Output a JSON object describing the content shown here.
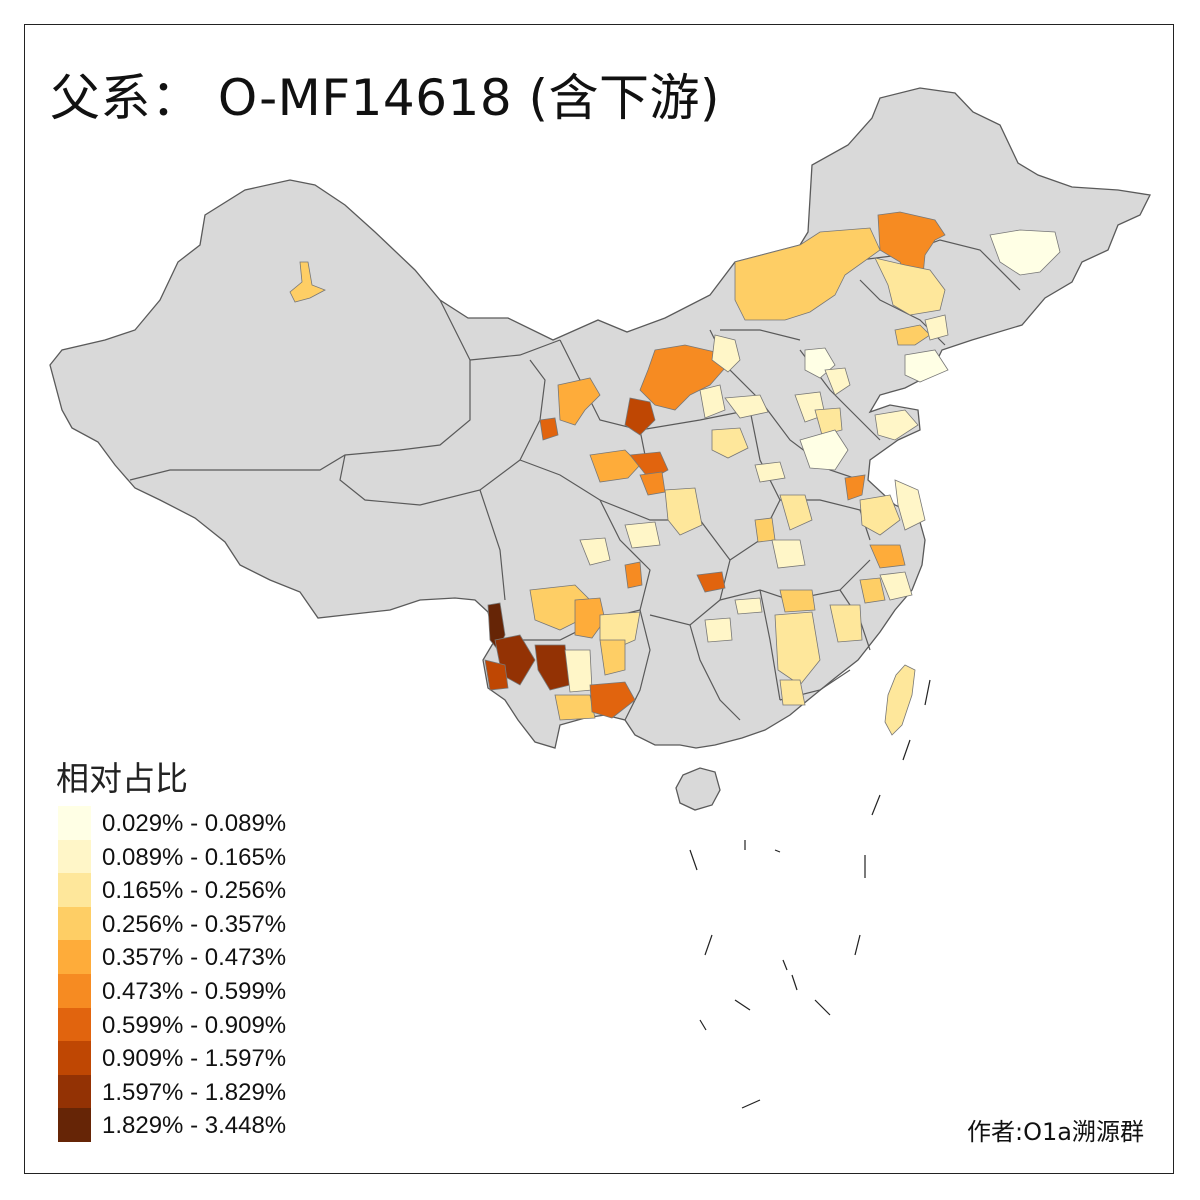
{
  "map": {
    "title": "父系： O-MF14618 (含下游)",
    "legend_title": "相对占比",
    "credit": "作者:O1a溯源群",
    "base_color": "#d9d9d9",
    "border_color": "#5a5a5a",
    "legend": [
      {
        "label": "0.029% - 0.089%",
        "color": "#ffffe5"
      },
      {
        "label": "0.089% - 0.165%",
        "color": "#fff6c8"
      },
      {
        "label": "0.165% - 0.256%",
        "color": "#fee79b"
      },
      {
        "label": "0.256% - 0.357%",
        "color": "#fece65"
      },
      {
        "label": "0.357% - 0.473%",
        "color": "#feac3a"
      },
      {
        "label": "0.473% - 0.599%",
        "color": "#f68b22"
      },
      {
        "label": "0.599% - 0.909%",
        "color": "#e1640e"
      },
      {
        "label": "0.909% - 1.597%",
        "color": "#bf4703"
      },
      {
        "label": "1.597% - 1.829%",
        "color": "#933204"
      },
      {
        "label": "1.829% - 3.448%",
        "color": "#662506"
      }
    ]
  }
}
